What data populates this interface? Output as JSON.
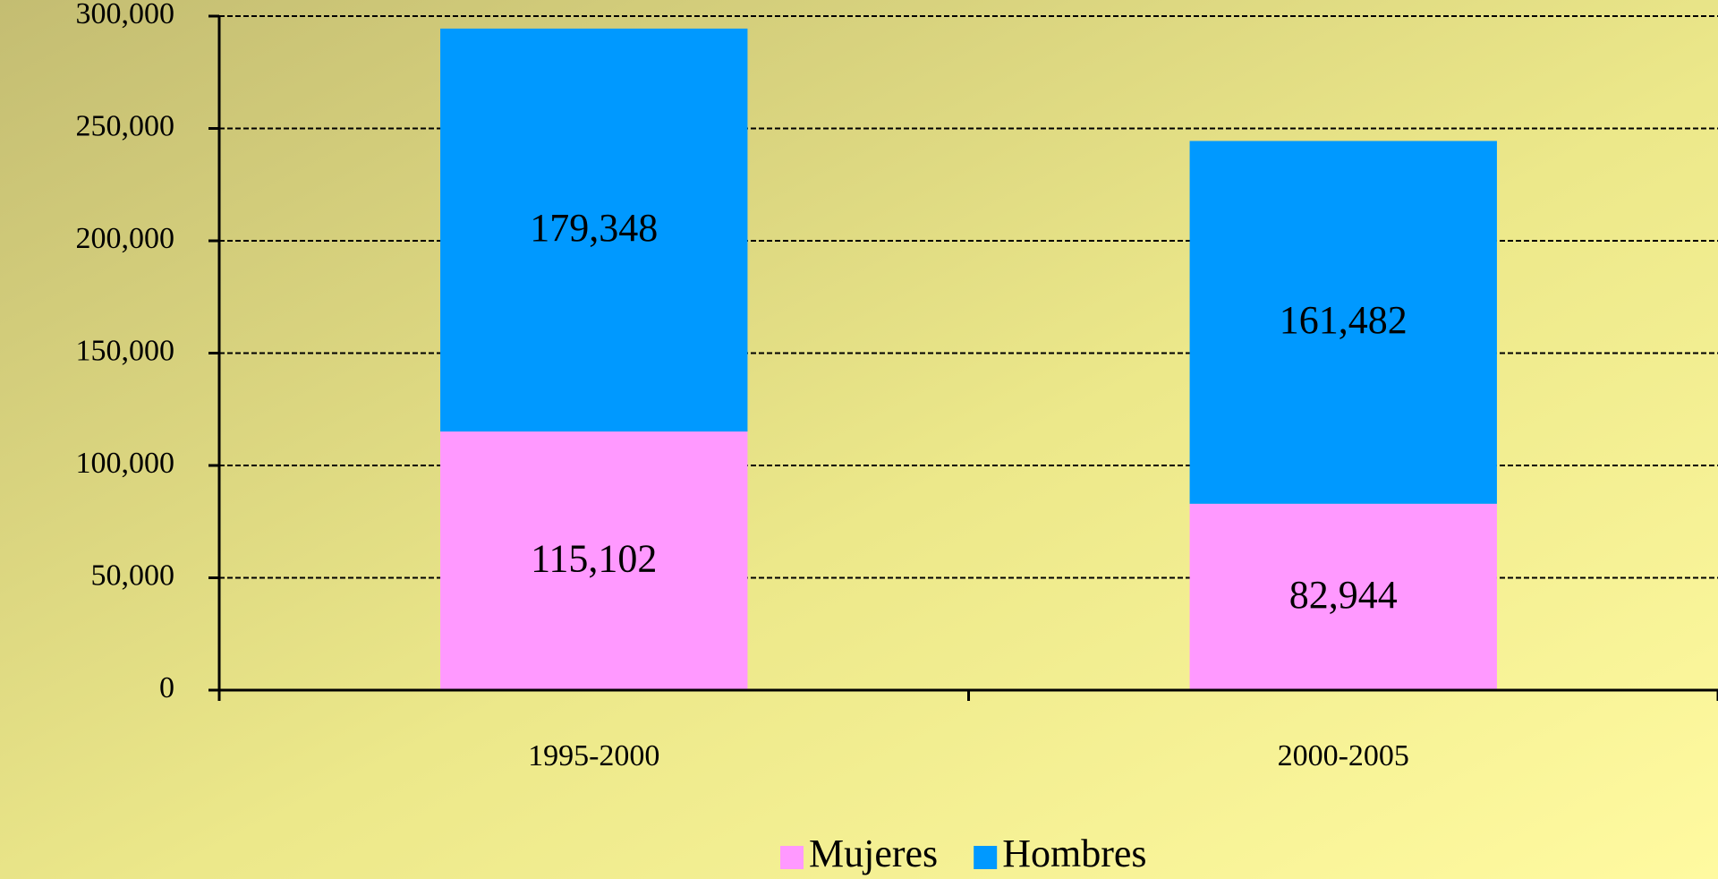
{
  "chart_data": {
    "type": "stacked_bar",
    "categories": [
      "1995-2000",
      "2000-2005"
    ],
    "series": [
      {
        "name": "Mujeres",
        "color": "#ff99ff",
        "values": [
          115102,
          82944
        ],
        "value_labels": [
          "115,102",
          "82,944"
        ]
      },
      {
        "name": "Hombres",
        "color": "#0099ff",
        "values": [
          179348,
          161482
        ],
        "value_labels": [
          "179,348",
          "161,482"
        ]
      }
    ],
    "ylim": [
      0,
      300000
    ],
    "yticks": [
      0,
      {
        "value": 50000,
        "label": "50,000"
      },
      {
        "value": 100000,
        "label": "100,000"
      },
      {
        "value": 150000,
        "label": "150,000"
      },
      {
        "value": 200000,
        "label": "200,000"
      },
      {
        "value": 250000,
        "label": "250,000"
      },
      {
        "value": 300000,
        "label": "300,000"
      }
    ],
    "grid": true,
    "legend": "bottom"
  }
}
